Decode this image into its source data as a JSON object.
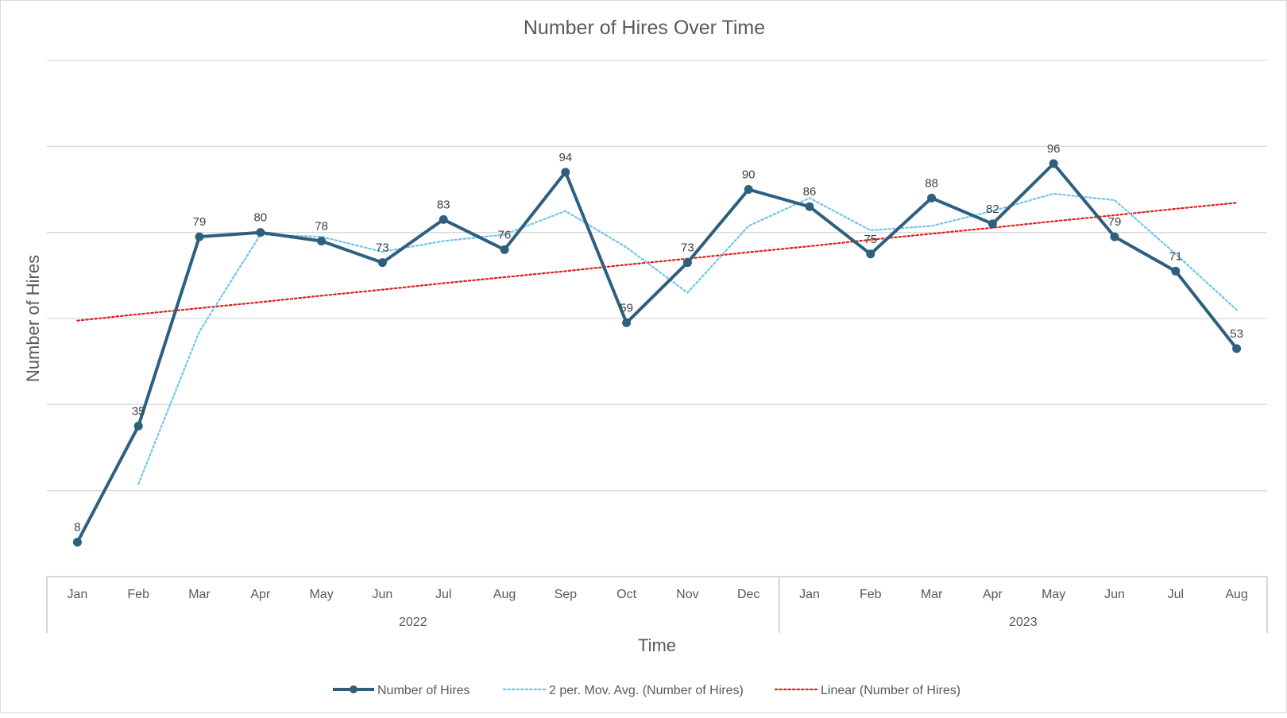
{
  "chart_data": {
    "type": "line",
    "title": "Number of Hires Over Time",
    "xlabel": "Time",
    "ylabel": "Number of Hires",
    "groups": [
      {
        "label": "2022",
        "categories": [
          "Jan",
          "Feb",
          "Mar",
          "Apr",
          "May",
          "Jun",
          "Jul",
          "Aug",
          "Sep",
          "Oct",
          "Nov",
          "Dec"
        ]
      },
      {
        "label": "2023",
        "categories": [
          "Jan",
          "Feb",
          "Mar",
          "Apr",
          "May",
          "Jun",
          "Jul",
          "Aug"
        ]
      }
    ],
    "categories": [
      "Jan",
      "Feb",
      "Mar",
      "Apr",
      "May",
      "Jun",
      "Jul",
      "Aug",
      "Sep",
      "Oct",
      "Nov",
      "Dec",
      "Jan",
      "Feb",
      "Mar",
      "Apr",
      "May",
      "Jun",
      "Jul",
      "Aug"
    ],
    "series": [
      {
        "name": "Number of Hires",
        "values": [
          8,
          35,
          79,
          80,
          78,
          73,
          83,
          76,
          94,
          59,
          73,
          90,
          86,
          75,
          88,
          82,
          96,
          79,
          71,
          53
        ],
        "data_labels": true,
        "color": "#2e5f7f",
        "style": "solid-with-markers"
      },
      {
        "name": "2 per. Mov. Avg. (Number of Hires)",
        "values": [
          null,
          21.5,
          57,
          79.5,
          79,
          75.5,
          78,
          79.5,
          85,
          76.5,
          66,
          81.5,
          88,
          80.5,
          81.5,
          85,
          89,
          87.5,
          75,
          62
        ],
        "color": "#71c5ec",
        "style": "dotted"
      },
      {
        "name": "Linear (Number of Hires)",
        "values": [
          59.5,
          61.0,
          62.4,
          63.8,
          65.3,
          66.7,
          68.2,
          69.6,
          71.0,
          72.5,
          73.9,
          75.4,
          76.8,
          78.3,
          79.7,
          81.1,
          82.6,
          84.0,
          85.5,
          86.9
        ],
        "color": "#e02020",
        "style": "dotted"
      }
    ],
    "ylim": [
      0,
      120
    ],
    "y_gridlines": [
      20,
      40,
      60,
      80,
      100,
      120
    ],
    "y_tick_labels_shown": false,
    "grid": true,
    "legend_position": "bottom"
  }
}
